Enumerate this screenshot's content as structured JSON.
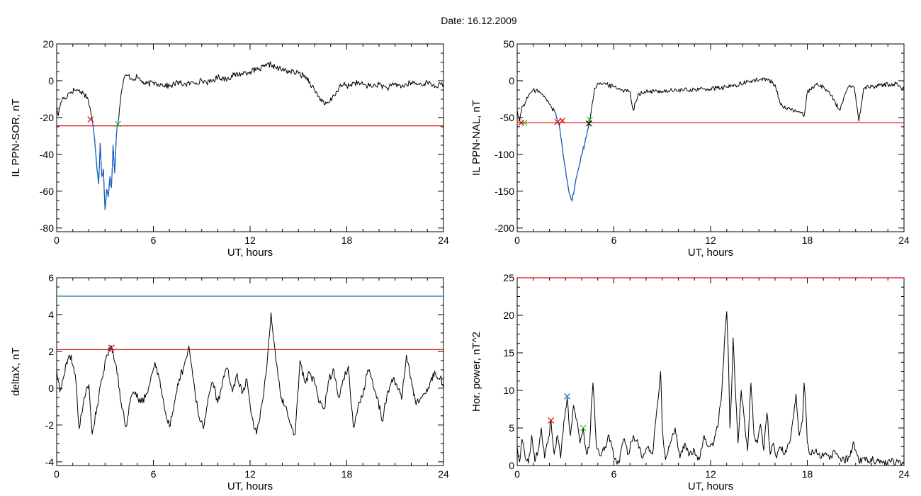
{
  "date_label": "Date:  16.12.2009",
  "colors": {
    "trace": "#000000",
    "threshold_red": "#dd0000",
    "threshold_blue": "#1a78a8",
    "segment_blue": "#1060c8",
    "marker_red": "#dd0000",
    "marker_green": "#22bb22",
    "marker_blue": "#1060c8"
  },
  "chart_data": [
    {
      "id": "ppn-sor",
      "type": "line",
      "title": "",
      "xlabel": "UT, hours",
      "ylabel": "IL PPN-SOR, nT",
      "xlim": [
        0,
        24
      ],
      "ylim": [
        -82,
        20
      ],
      "xticks": [
        0,
        6,
        12,
        18,
        24
      ],
      "yticks": [
        -80,
        -60,
        -40,
        -20,
        0,
        20
      ],
      "grid": false,
      "threshold": {
        "value": -24.5,
        "color": "red"
      },
      "highlight": {
        "x_start": 2.2,
        "x_end": 3.85,
        "color": "blue"
      },
      "markers": [
        {
          "x": 2.1,
          "y": -21,
          "color": "red",
          "symbol": "x"
        },
        {
          "x": 3.8,
          "y": -23.5,
          "color": "green",
          "symbol": "x"
        }
      ],
      "series": [
        {
          "color": "black",
          "x": [
            0,
            0.1,
            0.25,
            0.4,
            0.55,
            0.7,
            0.9,
            1.1,
            1.3,
            1.5,
            1.7,
            1.9,
            2.05,
            2.2,
            2.3,
            2.4,
            2.5,
            2.6,
            2.7,
            2.8,
            2.9,
            3.0,
            3.1,
            3.2,
            3.3,
            3.4,
            3.5,
            3.6,
            3.7,
            3.8,
            3.9,
            4.0,
            4.2,
            4.4,
            4.7,
            5.0,
            5.5,
            6.0,
            6.5,
            7.0,
            7.5,
            8.0,
            8.5,
            9.0,
            9.5,
            10.0,
            10.5,
            11.0,
            11.5,
            12.0,
            12.5,
            13.0,
            13.3,
            13.6,
            14.0,
            14.5,
            15.0,
            15.5,
            16.0,
            16.3,
            16.6,
            16.9,
            17.2,
            17.5,
            17.8,
            18.0,
            18.5,
            19.0,
            19.5,
            20.0,
            20.5,
            21.0,
            21.5,
            22.0,
            22.5,
            23.0,
            23.5,
            24.0
          ],
          "y": [
            -14,
            -19,
            -12,
            -9,
            -10,
            -7,
            -6,
            -5,
            -5,
            -6,
            -7,
            -9,
            -14,
            -21,
            -28,
            -37,
            -48,
            -56,
            -34,
            -52,
            -48,
            -70,
            -59,
            -63,
            -52,
            -58,
            -35,
            -50,
            -30,
            -23,
            -15,
            -7,
            2,
            3,
            1,
            2,
            -2,
            -1,
            -2,
            -3,
            -1,
            -2,
            -1,
            0,
            -1,
            2,
            1,
            3,
            4,
            5,
            6,
            8,
            9,
            7,
            6,
            5,
            4,
            2,
            -5,
            -9,
            -13,
            -12,
            -8,
            -4,
            -2,
            -3,
            -1,
            -2,
            -3,
            -2,
            -4,
            -2,
            -3,
            -1,
            -2,
            -1,
            -3,
            -2
          ]
        }
      ]
    },
    {
      "id": "ppn-nal",
      "type": "line",
      "title": "",
      "xlabel": "UT, hours",
      "ylabel": "IL PPN-NAL, nT",
      "xlim": [
        0,
        24
      ],
      "ylim": [
        -205,
        50
      ],
      "xticks": [
        0,
        6,
        12,
        18,
        24
      ],
      "yticks": [
        -200,
        -150,
        -100,
        -50,
        0,
        50
      ],
      "grid": false,
      "threshold": {
        "value": -57,
        "color": "red"
      },
      "highlight": {
        "x_start": 2.4,
        "x_end": 4.4,
        "color": "blue"
      },
      "markers": [
        {
          "x": 0.25,
          "y": -57,
          "color": "red",
          "symbol": "x"
        },
        {
          "x": 0.45,
          "y": -57,
          "color": "green",
          "symbol": "x"
        },
        {
          "x": 2.5,
          "y": -56,
          "color": "red",
          "symbol": "x"
        },
        {
          "x": 2.8,
          "y": -54,
          "color": "red",
          "symbol": "x"
        },
        {
          "x": 4.5,
          "y": -53,
          "color": "green",
          "symbol": "x"
        },
        {
          "x": 4.45,
          "y": -58,
          "color": "black",
          "symbol": "x"
        }
      ],
      "series": [
        {
          "color": "black",
          "x": [
            0,
            0.15,
            0.3,
            0.5,
            0.7,
            0.9,
            1.2,
            1.5,
            1.8,
            2.1,
            2.4,
            2.6,
            2.8,
            3.0,
            3.2,
            3.4,
            3.6,
            3.8,
            4.0,
            4.2,
            4.4,
            4.6,
            4.8,
            5.0,
            5.5,
            6.0,
            6.5,
            7.0,
            7.2,
            7.5,
            8.0,
            9.0,
            10.0,
            11.0,
            12.0,
            13.0,
            13.5,
            14.0,
            14.5,
            15.0,
            15.5,
            16.0,
            16.3,
            16.7,
            17.0,
            17.5,
            17.8,
            18.0,
            18.5,
            19.0,
            19.5,
            20.0,
            20.5,
            20.9,
            21.2,
            21.5,
            22.0,
            22.5,
            23.0,
            23.5,
            24.0
          ],
          "y": [
            -40,
            -55,
            -35,
            -30,
            -20,
            -15,
            -12,
            -18,
            -25,
            -35,
            -45,
            -60,
            -90,
            -120,
            -150,
            -163,
            -140,
            -120,
            -100,
            -85,
            -65,
            -40,
            -10,
            -3,
            -5,
            -8,
            -12,
            -15,
            -40,
            -18,
            -15,
            -14,
            -13,
            -12,
            -11,
            -9,
            -6,
            -4,
            0,
            1,
            2,
            -5,
            -30,
            -38,
            -40,
            -42,
            -48,
            -15,
            -5,
            -8,
            -20,
            -40,
            -10,
            -8,
            -55,
            -10,
            -8,
            -6,
            -5,
            -4,
            -12
          ]
        }
      ]
    },
    {
      "id": "deltax",
      "type": "line",
      "title": "",
      "xlabel": "UT, hours",
      "ylabel": "deltaX, nT",
      "xlim": [
        0,
        24
      ],
      "ylim": [
        -4.2,
        6
      ],
      "xticks": [
        0,
        6,
        12,
        18,
        24
      ],
      "yticks": [
        -4,
        -2,
        0,
        2,
        4,
        6
      ],
      "grid": false,
      "threshold": {
        "value": 2.1,
        "color": "red"
      },
      "threshold2": {
        "value": 5.0,
        "color": "blue"
      },
      "markers": [
        {
          "x": 3.4,
          "y": 2.2,
          "color": "red",
          "symbol": "x"
        }
      ],
      "series": [
        {
          "color": "black",
          "x": [
            0,
            0.2,
            0.4,
            0.6,
            0.9,
            1.2,
            1.4,
            1.7,
            2.0,
            2.2,
            2.5,
            2.8,
            3.1,
            3.4,
            3.7,
            4.0,
            4.3,
            4.6,
            4.9,
            5.2,
            5.5,
            5.8,
            6.1,
            6.4,
            6.7,
            7.0,
            7.3,
            7.6,
            7.9,
            8.2,
            8.5,
            8.8,
            9.1,
            9.4,
            9.7,
            10.0,
            10.3,
            10.6,
            10.9,
            11.2,
            11.5,
            11.8,
            12.1,
            12.4,
            12.7,
            13.0,
            13.3,
            13.6,
            13.9,
            14.2,
            14.5,
            14.8,
            15.1,
            15.4,
            15.7,
            16.0,
            16.3,
            16.6,
            16.9,
            17.2,
            17.5,
            17.8,
            18.1,
            18.4,
            18.7,
            19.0,
            19.3,
            19.6,
            19.9,
            20.2,
            20.5,
            20.8,
            21.1,
            21.4,
            21.7,
            22.0,
            22.3,
            22.6,
            22.9,
            23.2,
            23.5,
            23.8,
            24.0
          ],
          "y": [
            1.0,
            -0.2,
            0.5,
            1.4,
            1.8,
            0.3,
            -2.2,
            -0.5,
            0.2,
            -2.5,
            -1.0,
            0.5,
            1.8,
            2.3,
            1.2,
            -0.8,
            -2.1,
            -0.5,
            -0.2,
            -0.8,
            -0.5,
            0.3,
            1.4,
            0.5,
            -1.2,
            -2.1,
            -0.8,
            0.5,
            1.2,
            2.3,
            0.4,
            -1.5,
            -2.2,
            -0.5,
            0.3,
            -0.8,
            0.4,
            1.1,
            -0.2,
            0.8,
            -0.3,
            0.5,
            -1.5,
            -2.5,
            -1.0,
            0.8,
            4.1,
            1.5,
            -0.5,
            -1.0,
            -2.0,
            -2.5,
            1.5,
            0.3,
            0.8,
            0.3,
            -0.8,
            -1.1,
            0.5,
            1.0,
            -0.5,
            0.5,
            1.2,
            -2.1,
            -1.0,
            -0.4,
            1.0,
            0.4,
            -0.5,
            -1.8,
            -0.3,
            0.5,
            0.2,
            -0.6,
            1.8,
            0.5,
            -0.9,
            -0.5,
            -0.3,
            0.4,
            0.8,
            0.6,
            0.0
          ]
        }
      ]
    },
    {
      "id": "hor-power",
      "type": "line",
      "title": "",
      "xlabel": "UT, hours",
      "ylabel": "Hor. power, nT^2",
      "xlim": [
        0,
        24
      ],
      "ylim": [
        0,
        25
      ],
      "xticks": [
        0,
        6,
        12,
        18,
        24
      ],
      "yticks": [
        0,
        5,
        10,
        15,
        20,
        25
      ],
      "grid": false,
      "threshold": {
        "value": 25,
        "color": "red"
      },
      "markers": [
        {
          "x": 2.1,
          "y": 6.0,
          "color": "red",
          "symbol": "x"
        },
        {
          "x": 3.1,
          "y": 9.2,
          "color": "blue",
          "symbol": "x"
        },
        {
          "x": 4.1,
          "y": 5.0,
          "color": "green",
          "symbol": "x"
        }
      ],
      "series": [
        {
          "color": "black",
          "x": [
            0,
            0.15,
            0.3,
            0.5,
            0.7,
            0.9,
            1.1,
            1.3,
            1.5,
            1.7,
            1.9,
            2.1,
            2.3,
            2.5,
            2.7,
            2.9,
            3.1,
            3.3,
            3.5,
            3.7,
            3.9,
            4.1,
            4.3,
            4.5,
            4.6,
            4.7,
            4.9,
            5.1,
            5.4,
            5.7,
            6.0,
            6.3,
            6.6,
            6.9,
            7.2,
            7.5,
            7.8,
            8.1,
            8.4,
            8.6,
            8.8,
            8.9,
            9.0,
            9.2,
            9.5,
            9.8,
            10.1,
            10.4,
            10.7,
            11.0,
            11.3,
            11.6,
            11.9,
            12.2,
            12.5,
            12.7,
            12.9,
            13.0,
            13.1,
            13.2,
            13.3,
            13.4,
            13.5,
            13.7,
            13.9,
            14.1,
            14.3,
            14.5,
            14.7,
            14.9,
            15.1,
            15.3,
            15.5,
            15.7,
            15.9,
            16.1,
            16.3,
            16.6,
            16.9,
            17.1,
            17.3,
            17.5,
            17.7,
            17.8,
            17.9,
            18.0,
            18.2,
            18.5,
            18.8,
            19.1,
            19.4,
            19.7,
            20.0,
            20.3,
            20.6,
            20.9,
            21.0,
            21.2,
            21.5,
            21.8,
            22.1,
            22.5,
            23.0,
            23.5,
            24.0
          ],
          "y": [
            2.5,
            0.5,
            3.5,
            1.0,
            0.3,
            4.0,
            0.5,
            2.0,
            5.0,
            1.0,
            3.0,
            6.0,
            1.5,
            4.0,
            1.0,
            6.0,
            9.0,
            4.0,
            8.0,
            6.0,
            3.0,
            5.0,
            1.5,
            3.0,
            8.0,
            11.0,
            3.0,
            1.5,
            2.0,
            4.0,
            1.0,
            0.3,
            3.5,
            1.5,
            4.0,
            3.0,
            1.0,
            2.5,
            1.5,
            6.0,
            10.0,
            12.5,
            5.0,
            0.8,
            3.0,
            5.0,
            1.0,
            3.0,
            1.5,
            2.0,
            0.8,
            4.0,
            2.5,
            3.0,
            6.0,
            10.0,
            18.0,
            20.5,
            15.0,
            5.0,
            10.0,
            17.0,
            12.0,
            3.0,
            10.0,
            6.0,
            2.0,
            11.0,
            4.0,
            3.0,
            5.5,
            2.0,
            7.0,
            1.5,
            3.0,
            1.0,
            2.5,
            1.5,
            3.0,
            6.0,
            9.5,
            4.0,
            6.0,
            11.0,
            8.0,
            3.0,
            1.5,
            2.0,
            1.0,
            1.5,
            0.8,
            2.0,
            1.0,
            0.5,
            1.2,
            3.0,
            2.0,
            0.5,
            1.0,
            0.6,
            0.8,
            0.3,
            0.6,
            0.4,
            0.5
          ]
        }
      ]
    }
  ]
}
